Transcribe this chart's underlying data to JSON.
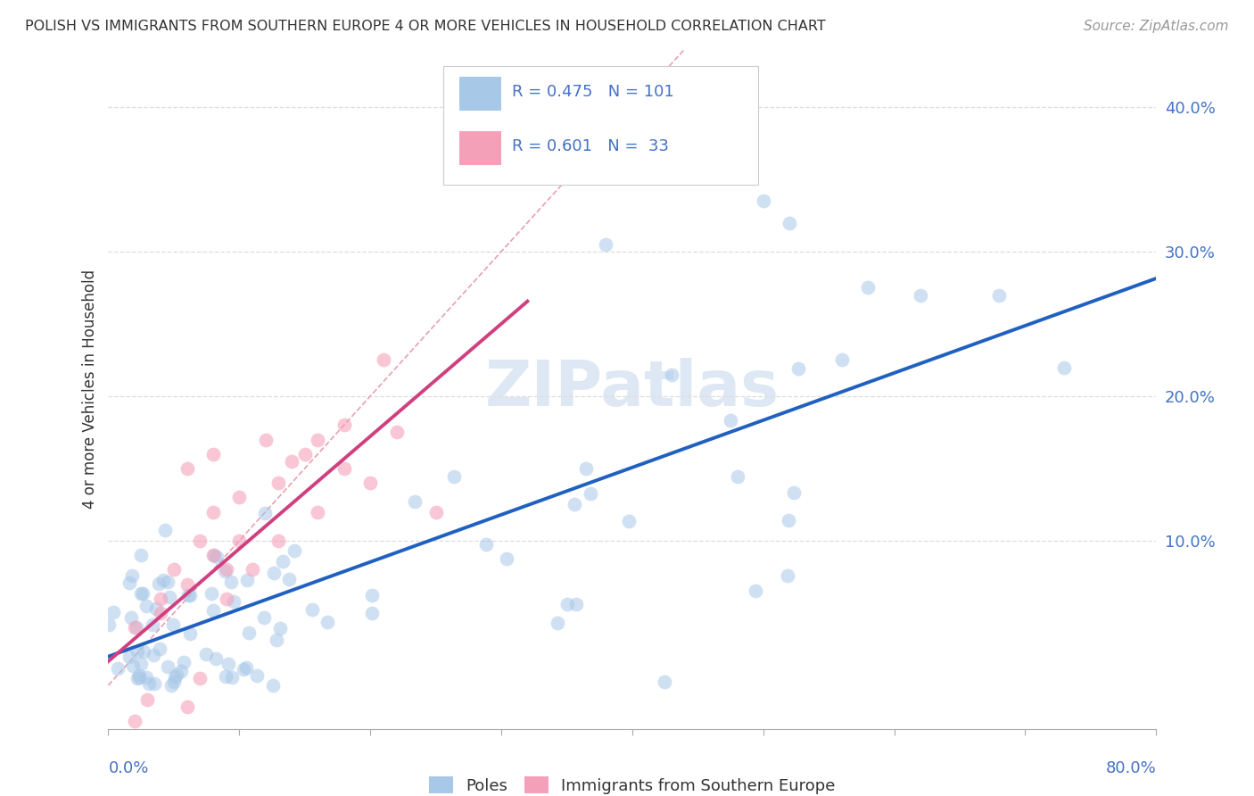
{
  "title": "POLISH VS IMMIGRANTS FROM SOUTHERN EUROPE 4 OR MORE VEHICLES IN HOUSEHOLD CORRELATION CHART",
  "source": "Source: ZipAtlas.com",
  "ylabel": "4 or more Vehicles in Household",
  "xlim": [
    0.0,
    0.8
  ],
  "ylim": [
    -0.03,
    0.44
  ],
  "yticks": [
    0.0,
    0.1,
    0.2,
    0.3,
    0.4
  ],
  "ytick_labels": [
    "",
    "10.0%",
    "20.0%",
    "30.0%",
    "40.0%"
  ],
  "legend_text1": "R = 0.475   N = 101",
  "legend_text2": "R = 0.601   N =  33",
  "legend_label1": "Poles",
  "legend_label2": "Immigrants from Southern Europe",
  "color_blue": "#a8c8e8",
  "color_pink": "#f4a0b8",
  "color_blue_line": "#2060c0",
  "color_pink_line": "#d04080",
  "color_diag_line": "#e8a0b0",
  "color_text_blue": "#4472c4",
  "color_text_dark": "#333333",
  "color_source": "#999999",
  "watermark_color": "#dde8f4",
  "grid_color": "#dddddd"
}
